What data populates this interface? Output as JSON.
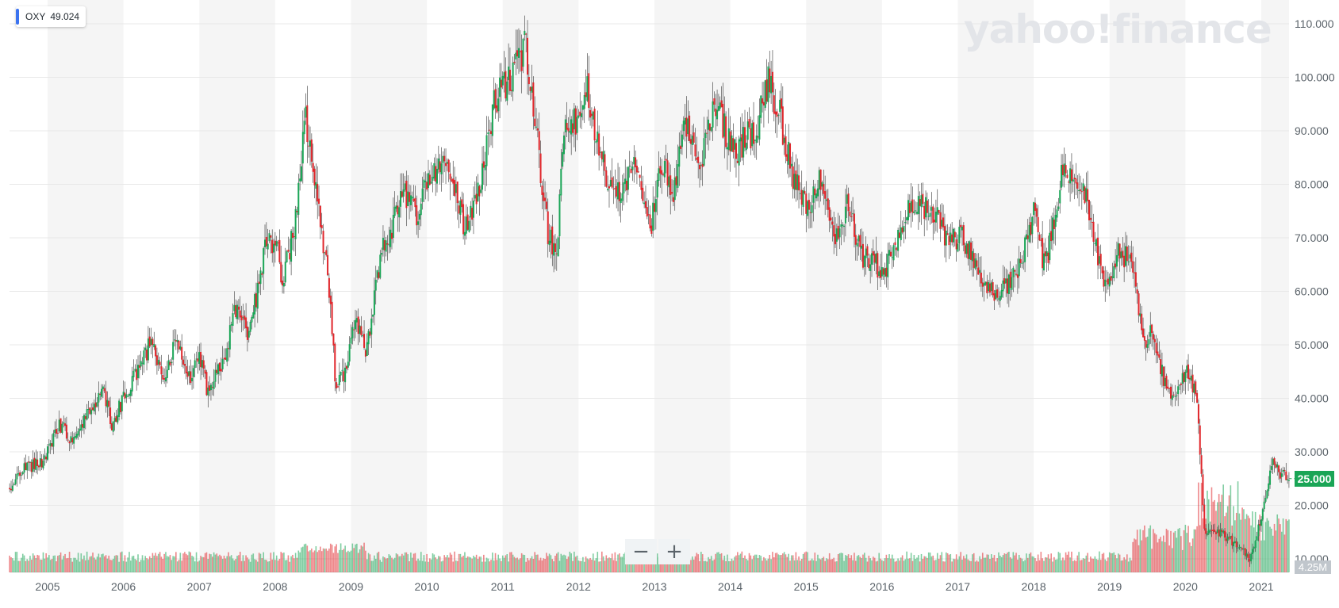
{
  "legend": {
    "symbol": "OXY",
    "value": "49.024",
    "color": "#3b73f0"
  },
  "watermark": "yahoo!finance",
  "zoom": {
    "minus_label": "−",
    "plus_label": "+"
  },
  "price_badge": "25.000",
  "volume_badge": "4.25M",
  "colors": {
    "up": "#1aa556",
    "down": "#e0262b",
    "grid": "#e8e8e8",
    "band": "#f5f5f5"
  },
  "chart_data": {
    "type": "candlestick",
    "symbol": "OXY",
    "y_ticks": [
      "10.000",
      "20.000",
      "30.000",
      "40.000",
      "50.000",
      "60.000",
      "70.000",
      "80.000",
      "90.000",
      "100.000",
      "110.000"
    ],
    "ylim": [
      7,
      117
    ],
    "x_ticks": [
      "2005",
      "2006",
      "2007",
      "2008",
      "2009",
      "2010",
      "2011",
      "2012",
      "2013",
      "2014",
      "2015",
      "2016",
      "2017",
      "2018",
      "2019",
      "2020",
      "2021"
    ],
    "xlim": [
      2004.5,
      2021.4
    ],
    "price_path": [
      [
        2004.5,
        23
      ],
      [
        2004.7,
        27
      ],
      [
        2004.95,
        28
      ],
      [
        2005.15,
        35
      ],
      [
        2005.35,
        32
      ],
      [
        2005.6,
        39
      ],
      [
        2005.75,
        41
      ],
      [
        2005.85,
        35
      ],
      [
        2006.0,
        40
      ],
      [
        2006.35,
        50
      ],
      [
        2006.55,
        44
      ],
      [
        2006.7,
        51
      ],
      [
        2006.85,
        43
      ],
      [
        2007.0,
        48
      ],
      [
        2007.1,
        42
      ],
      [
        2007.3,
        46
      ],
      [
        2007.5,
        58
      ],
      [
        2007.65,
        51
      ],
      [
        2007.85,
        67
      ],
      [
        2008.0,
        70
      ],
      [
        2008.1,
        62
      ],
      [
        2008.25,
        72
      ],
      [
        2008.4,
        92
      ],
      [
        2008.55,
        78
      ],
      [
        2008.72,
        60
      ],
      [
        2008.8,
        42
      ],
      [
        2008.9,
        44
      ],
      [
        2009.05,
        55
      ],
      [
        2009.2,
        48
      ],
      [
        2009.4,
        67
      ],
      [
        2009.7,
        78
      ],
      [
        2009.85,
        74
      ],
      [
        2010.0,
        80
      ],
      [
        2010.3,
        84
      ],
      [
        2010.5,
        72
      ],
      [
        2010.7,
        80
      ],
      [
        2010.9,
        96
      ],
      [
        2011.1,
        100
      ],
      [
        2011.3,
        106
      ],
      [
        2011.4,
        96
      ],
      [
        2011.6,
        70
      ],
      [
        2011.72,
        68
      ],
      [
        2011.8,
        90
      ],
      [
        2012.0,
        92
      ],
      [
        2012.1,
        98
      ],
      [
        2012.35,
        82
      ],
      [
        2012.55,
        78
      ],
      [
        2012.75,
        86
      ],
      [
        2012.95,
        72
      ],
      [
        2013.1,
        84
      ],
      [
        2013.25,
        78
      ],
      [
        2013.4,
        91
      ],
      [
        2013.6,
        84
      ],
      [
        2013.8,
        95
      ],
      [
        2014.05,
        86
      ],
      [
        2014.35,
        91
      ],
      [
        2014.5,
        99
      ],
      [
        2014.65,
        93
      ],
      [
        2014.85,
        80
      ],
      [
        2015.05,
        76
      ],
      [
        2015.2,
        82
      ],
      [
        2015.35,
        70
      ],
      [
        2015.55,
        76
      ],
      [
        2015.75,
        66
      ],
      [
        2016.05,
        64
      ],
      [
        2016.2,
        70
      ],
      [
        2016.35,
        76
      ],
      [
        2016.65,
        76
      ],
      [
        2016.85,
        70
      ],
      [
        2017.05,
        70
      ],
      [
        2017.3,
        63
      ],
      [
        2017.5,
        59
      ],
      [
        2017.8,
        64
      ],
      [
        2018.0,
        75
      ],
      [
        2018.15,
        64
      ],
      [
        2018.4,
        84
      ],
      [
        2018.65,
        80
      ],
      [
        2018.8,
        70
      ],
      [
        2018.95,
        60
      ],
      [
        2019.1,
        67
      ],
      [
        2019.3,
        66
      ],
      [
        2019.45,
        50
      ],
      [
        2019.55,
        52
      ],
      [
        2019.75,
        42
      ],
      [
        2019.85,
        40
      ],
      [
        2020.0,
        45
      ],
      [
        2020.15,
        41
      ],
      [
        2020.25,
        15
      ],
      [
        2020.45,
        15
      ],
      [
        2020.65,
        13
      ],
      [
        2020.85,
        10
      ],
      [
        2021.0,
        18
      ],
      [
        2021.15,
        28
      ],
      [
        2021.25,
        26
      ],
      [
        2021.35,
        25
      ]
    ],
    "volume": {
      "unit": "M",
      "last": "4.25M",
      "note": "low through 2018, elevated from 2019.3, peak in 2020"
    }
  }
}
